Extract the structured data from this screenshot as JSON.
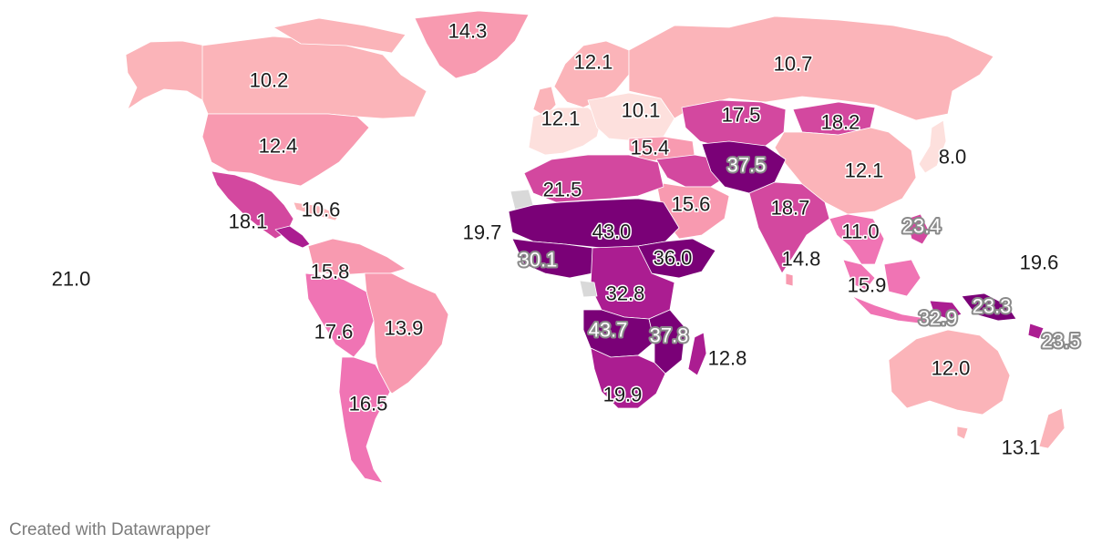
{
  "credit": "Created with Datawrapper",
  "colors": {
    "scale": [
      "#fde0dd",
      "#fbb4b9",
      "#f89ab0",
      "#f074b4",
      "#d3489f",
      "#ab1d91",
      "#7a0177"
    ],
    "no_data": "#d9d9d9",
    "label_text": "#1b1b1b",
    "label_halo_light": "#ffffff",
    "label_halo_dark": "#8a8a8a"
  },
  "labels": [
    {
      "id": "greenland",
      "text": "14.3",
      "style": "dark"
    },
    {
      "id": "canada",
      "text": "10.2",
      "style": "dark"
    },
    {
      "id": "usa",
      "text": "12.4",
      "style": "dark"
    },
    {
      "id": "mexico",
      "text": "18.1",
      "style": "dark"
    },
    {
      "id": "caribbean",
      "text": "10.6",
      "style": "dark"
    },
    {
      "id": "pacific-east",
      "text": "21.0",
      "style": "dark"
    },
    {
      "id": "colombia",
      "text": "15.8",
      "style": "dark"
    },
    {
      "id": "brazil",
      "text": "13.9",
      "style": "dark"
    },
    {
      "id": "peru",
      "text": "17.6",
      "style": "dark"
    },
    {
      "id": "argentina",
      "text": "16.5",
      "style": "dark"
    },
    {
      "id": "scandinavia",
      "text": "12.1",
      "style": "dark"
    },
    {
      "id": "western-europe",
      "text": "12.1",
      "style": "dark"
    },
    {
      "id": "eastern-europe",
      "text": "10.1",
      "style": "dark"
    },
    {
      "id": "turkey",
      "text": "15.4",
      "style": "dark"
    },
    {
      "id": "russia",
      "text": "10.7",
      "style": "dark"
    },
    {
      "id": "kazakhstan",
      "text": "17.5",
      "style": "dark"
    },
    {
      "id": "mongolia",
      "text": "18.2",
      "style": "dark"
    },
    {
      "id": "afghanistan",
      "text": "37.5",
      "style": "light"
    },
    {
      "id": "china",
      "text": "12.1",
      "style": "dark"
    },
    {
      "id": "japan",
      "text": "8.0",
      "style": "dark"
    },
    {
      "id": "north-africa",
      "text": "21.5",
      "style": "dark"
    },
    {
      "id": "west-coast",
      "text": "19.7",
      "style": "dark"
    },
    {
      "id": "sahel",
      "text": "43.0",
      "style": "dark"
    },
    {
      "id": "arabia",
      "text": "15.6",
      "style": "dark"
    },
    {
      "id": "india",
      "text": "18.7",
      "style": "dark"
    },
    {
      "id": "sri-lanka",
      "text": "14.8",
      "style": "dark"
    },
    {
      "id": "indochina",
      "text": "11.0",
      "style": "dark"
    },
    {
      "id": "philippines",
      "text": "23.4",
      "style": "light"
    },
    {
      "id": "micronesia",
      "text": "19.6",
      "style": "dark"
    },
    {
      "id": "west-africa",
      "text": "30.1",
      "style": "light"
    },
    {
      "id": "east-africa",
      "text": "36.0",
      "style": "dark"
    },
    {
      "id": "central-africa",
      "text": "32.8",
      "style": "dark"
    },
    {
      "id": "malaysia",
      "text": "15.9",
      "style": "dark"
    },
    {
      "id": "timor",
      "text": "32.9",
      "style": "light"
    },
    {
      "id": "papua",
      "text": "23.3",
      "style": "light"
    },
    {
      "id": "melanesia",
      "text": "23.5",
      "style": "light"
    },
    {
      "id": "angola",
      "text": "43.7",
      "style": "light"
    },
    {
      "id": "mozambique",
      "text": "37.8",
      "style": "light"
    },
    {
      "id": "madagascar",
      "text": "12.8",
      "style": "dark"
    },
    {
      "id": "australia",
      "text": "12.0",
      "style": "dark"
    },
    {
      "id": "south-africa",
      "text": "19.9",
      "style": "dark"
    },
    {
      "id": "new-zealand",
      "text": "13.1",
      "style": "dark"
    }
  ]
}
